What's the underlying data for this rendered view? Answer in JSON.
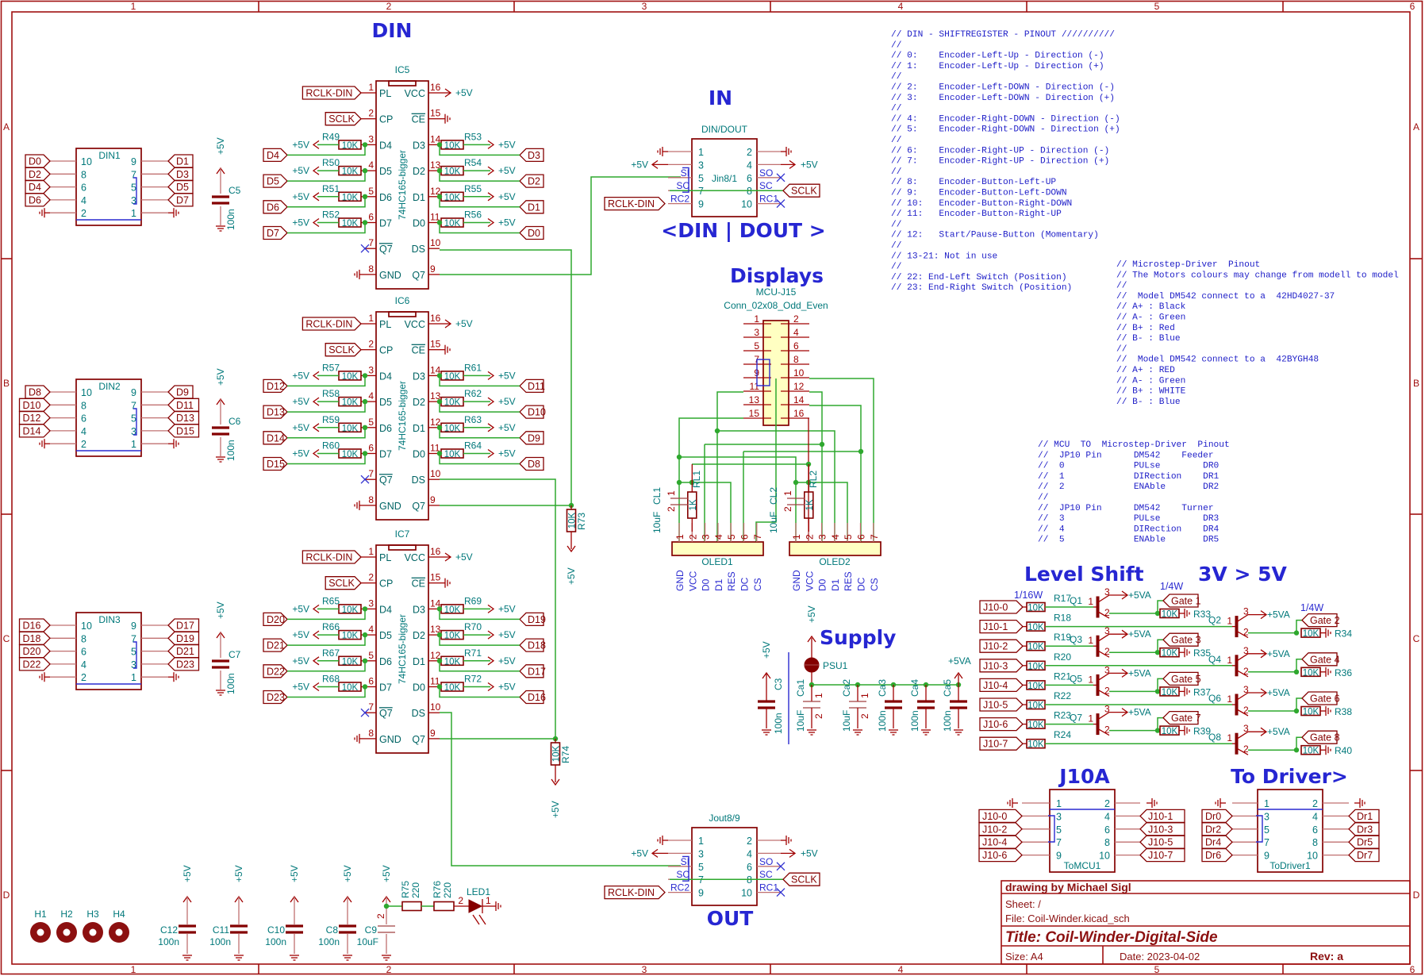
{
  "sheet": {
    "col_labels": [
      "1",
      "2",
      "3",
      "4",
      "5",
      "6"
    ],
    "row_labels": [
      "A",
      "B",
      "C",
      "D"
    ]
  },
  "power": {
    "v5": "+5V",
    "v5a": "+5VA"
  },
  "headings": {
    "din": "DIN",
    "in": "IN",
    "din_dout": "<DIN | DOUT >",
    "out": "OUT",
    "displays": "Displays",
    "level_shift": "Level Shift",
    "level_ratio": "3V > 5V",
    "supply": "Supply",
    "j10a": "J10A",
    "to_driver": "To Driver>"
  },
  "ic_pinout": {
    "left": [
      {
        "num": "1",
        "name": "PL"
      },
      {
        "num": "2",
        "name": "CP"
      },
      {
        "num": "3",
        "name": "D4"
      },
      {
        "num": "4",
        "name": "D5"
      },
      {
        "num": "5",
        "name": "D6"
      },
      {
        "num": "6",
        "name": "D7"
      },
      {
        "num": "7",
        "name": "Q7",
        "overline": true
      },
      {
        "num": "8",
        "name": "GND"
      }
    ],
    "right": [
      {
        "num": "16",
        "name": "VCC"
      },
      {
        "num": "15",
        "name": "CE",
        "overline": true
      },
      {
        "num": "14",
        "name": "D3"
      },
      {
        "num": "13",
        "name": "D2"
      },
      {
        "num": "12",
        "name": "D1"
      },
      {
        "num": "11",
        "name": "D0"
      },
      {
        "num": "10",
        "name": "DS"
      },
      {
        "num": "9",
        "name": "Q7"
      }
    ]
  },
  "shift_registers": [
    {
      "ref": "IC5",
      "value": "74HC165-bigger",
      "pl_net": "RCLK-DIN",
      "cp_net": "SCLK",
      "left": [
        {
          "ref": "R49",
          "value": "10K",
          "net": "D4"
        },
        {
          "ref": "R50",
          "value": "10K",
          "net": "D5"
        },
        {
          "ref": "R51",
          "value": "10K",
          "net": "D6"
        },
        {
          "ref": "R52",
          "value": "10K",
          "net": "D7"
        }
      ],
      "right": [
        {
          "ref": "R53",
          "value": "10K",
          "net": "D3"
        },
        {
          "ref": "R54",
          "value": "10K",
          "net": "D2"
        },
        {
          "ref": "R55",
          "value": "10K",
          "net": "D1"
        },
        {
          "ref": "R56",
          "value": "10K",
          "net": "D0"
        }
      ]
    },
    {
      "ref": "IC6",
      "value": "74HC165-bigger",
      "pl_net": "RCLK-DIN",
      "cp_net": "SCLK",
      "left": [
        {
          "ref": "R57",
          "value": "10K",
          "net": "D12"
        },
        {
          "ref": "R58",
          "value": "10K",
          "net": "D13"
        },
        {
          "ref": "R59",
          "value": "10K",
          "net": "D14"
        },
        {
          "ref": "R60",
          "value": "10K",
          "net": "D15"
        }
      ],
      "right": [
        {
          "ref": "R61",
          "value": "10K",
          "net": "D11"
        },
        {
          "ref": "R62",
          "value": "10K",
          "net": "D10"
        },
        {
          "ref": "R63",
          "value": "10K",
          "net": "D9"
        },
        {
          "ref": "R64",
          "value": "10K",
          "net": "D8"
        }
      ]
    },
    {
      "ref": "IC7",
      "value": "74HC165-bigger",
      "pl_net": "RCLK-DIN",
      "cp_net": "SCLK",
      "left": [
        {
          "ref": "R65",
          "value": "10K",
          "net": "D20"
        },
        {
          "ref": "R66",
          "value": "10K",
          "net": "D21"
        },
        {
          "ref": "R67",
          "value": "10K",
          "net": "D22"
        },
        {
          "ref": "R68",
          "value": "10K",
          "net": "D23"
        }
      ],
      "right": [
        {
          "ref": "R69",
          "value": "10K",
          "net": "D19"
        },
        {
          "ref": "R70",
          "value": "10K",
          "net": "D18"
        },
        {
          "ref": "R71",
          "value": "10K",
          "net": "D17"
        },
        {
          "ref": "R72",
          "value": "10K",
          "net": "D16"
        }
      ]
    }
  ],
  "pullups": [
    {
      "ref": "R73",
      "value": "10K"
    },
    {
      "ref": "R74",
      "value": "10K"
    }
  ],
  "din_pinout": {
    "left": [
      "10",
      "8",
      "6",
      "4",
      "2"
    ],
    "right": [
      "9",
      "7",
      "5",
      "3",
      "1"
    ]
  },
  "din_connectors": [
    {
      "ref": "DIN1",
      "left_nets": [
        "D0",
        "D2",
        "D4",
        "D6"
      ],
      "right_nets": [
        "D1",
        "D3",
        "D5",
        "D7"
      ],
      "cap": {
        "ref": "C5",
        "value": "100n"
      }
    },
    {
      "ref": "DIN2",
      "left_nets": [
        "D8",
        "D10",
        "D12",
        "D14"
      ],
      "right_nets": [
        "D9",
        "D11",
        "D13",
        "D15"
      ],
      "cap": {
        "ref": "C6",
        "value": "100n"
      }
    },
    {
      "ref": "DIN3",
      "left_nets": [
        "D16",
        "D18",
        "D20",
        "D22"
      ],
      "right_nets": [
        "D17",
        "D19",
        "D21",
        "D23"
      ],
      "cap": {
        "ref": "C7",
        "value": "100n"
      }
    }
  ],
  "io_pinout": {
    "left_pins": [
      "1",
      "3",
      "5",
      "7",
      "9"
    ],
    "left_names": [
      "",
      "",
      "SI",
      "SC",
      "RC2"
    ],
    "right_pins": [
      "2",
      "4",
      "6",
      "8",
      "10"
    ],
    "right_names": [
      "",
      "",
      "SO",
      "SC",
      "RC1"
    ],
    "left_net": "RCLK-DIN",
    "right_net": "SCLK"
  },
  "io_connectors": [
    {
      "ref": "DIN/DOUT",
      "value": "Jin8/1"
    },
    {
      "ref": "Jout8/9"
    }
  ],
  "displays": {
    "conn_ref": "MCU-J15",
    "conn_value": "Conn_02x08_Odd_Even",
    "pins_left": [
      "1",
      "3",
      "5",
      "7",
      "9",
      "11",
      "13",
      "15"
    ],
    "pins_right": [
      "2",
      "4",
      "6",
      "8",
      "10",
      "12",
      "14",
      "16"
    ],
    "oled_pins": [
      "1",
      "2",
      "3",
      "4",
      "5",
      "6",
      "7"
    ],
    "oled_pin_names": [
      "GND",
      "VCC",
      "D0",
      "D1",
      "RES",
      "DC",
      "CS"
    ],
    "cap_pins": [
      "1",
      "2"
    ],
    "oleds": [
      {
        "ref": "OLED1",
        "cap_ref": "CL1",
        "cap_value": "10uF",
        "res_ref": "RL1",
        "res_value": "1K"
      },
      {
        "ref": "OLED2",
        "cap_ref": "CL2",
        "cap_value": "10uF",
        "res_ref": "RL2",
        "res_value": "1K"
      }
    ]
  },
  "comments": {
    "din_pinout": [
      "// DIN - SHIFTREGISTER - PINOUT //////////",
      "//",
      "// 0:    Encoder-Left-Up - Direction (-)",
      "// 1:    Encoder-Left-Up - Direction (+)",
      "//",
      "// 2:    Encoder-Left-DOWN - Direction (-)",
      "// 3:    Encoder-Left-DOWN - Direction (+)",
      "//",
      "// 4:    Encoder-Right-DOWN - Direction (-)",
      "// 5:    Encoder-Right-DOWN - Direction (+)",
      "//",
      "// 6:    Encoder-Right-UP - Direction (-)",
      "// 7:    Encoder-Right-UP - Direction (+)",
      "//",
      "// 8:    Encoder-Button-Left-UP",
      "// 9:    Encoder-Button-Left-DOWN",
      "// 10:   Encoder-Button-Right-DOWN",
      "// 11:   Encoder-Button-Right-UP",
      "//",
      "// 12:   Start/Pause-Button (Momentary)",
      "//",
      "// 13-21: Not in use",
      "//",
      "// 22: End-Left Switch (Position)",
      "// 23: End-Right Switch (Position)"
    ],
    "motor_pinout": [
      "// Microstep-Driver  Pinout",
      "// The Motors colours may change from modell to model",
      "//",
      "//  Model DM542 connect to a  42HD4027-37",
      "// A+ : Black",
      "// A- : Green",
      "// B+ : Red",
      "// B- : Blue",
      "//",
      "//  Model DM542 connect to a  42BYGH48",
      "// A+ : RED",
      "// A- : Green",
      "// B+ : WHITE",
      "// B- : Blue"
    ],
    "mcu_pinout": [
      "// MCU  TO  Microstep-Driver  Pinout",
      "//  JP10 Pin      DM542    Feeder",
      "//  0             PULse        DR0",
      "//  1             DIRection    DR1",
      "//  2             ENAble       DR2",
      "//",
      "//  JP10 Pin      DM542    Turner",
      "//  3             PULse        DR3",
      "//  4             DIRection    DR4",
      "//  5             ENAble       DR5"
    ]
  },
  "level_shift": {
    "rating_in": "1/16W",
    "rating_pd": "1/4W",
    "transistor_pins": [
      "1",
      "2",
      "3"
    ],
    "rows": [
      {
        "net": "J10-0",
        "r_in": "R17",
        "r_in_value": "10K",
        "q": "Q1",
        "gate": "Gate 1",
        "r_pd": "R33",
        "r_pd_value": "10K"
      },
      {
        "net": "J10-1",
        "r_in": "R18",
        "r_in_value": "10K",
        "q": "Q2",
        "gate": "Gate 2",
        "r_pd": "R34",
        "r_pd_value": "10K"
      },
      {
        "net": "J10-2",
        "r_in": "R19",
        "r_in_value": "10K",
        "q": "Q3",
        "gate": "Gate 3",
        "r_pd": "R35",
        "r_pd_value": "10K"
      },
      {
        "net": "J10-3",
        "r_in": "R20",
        "r_in_value": "10K",
        "q": "Q4",
        "gate": "Gate 4",
        "r_pd": "R36",
        "r_pd_value": "10K"
      },
      {
        "net": "J10-4",
        "r_in": "R21",
        "r_in_value": "10K",
        "q": "Q5",
        "gate": "Gate 5",
        "r_pd": "R37",
        "r_pd_value": "10K"
      },
      {
        "net": "J10-5",
        "r_in": "R22",
        "r_in_value": "10K",
        "q": "Q6",
        "gate": "Gate 6",
        "r_pd": "R38",
        "r_pd_value": "10K"
      },
      {
        "net": "J10-6",
        "r_in": "R23",
        "r_in_value": "10K",
        "q": "Q7",
        "gate": "Gate 7",
        "r_pd": "R39",
        "r_pd_value": "10K"
      },
      {
        "net": "J10-7",
        "r_in": "R24",
        "r_in_value": "10K",
        "q": "Q8",
        "gate": "Gate 8",
        "r_pd": "R40",
        "r_pd_value": "10K"
      }
    ]
  },
  "supply": {
    "psu": "PSU1",
    "c3": {
      "ref": "C3",
      "value": "100n"
    },
    "caps": [
      {
        "ref": "Ca1",
        "value": "10uF",
        "polar": true
      },
      {
        "ref": "Ca2",
        "value": "10uF",
        "polar": true
      },
      {
        "ref": "Ca3",
        "value": "100n"
      },
      {
        "ref": "Ca4",
        "value": "100n"
      },
      {
        "ref": "Ca5",
        "value": "100n"
      }
    ],
    "cap_pins": [
      "1",
      "2"
    ]
  },
  "box_pinout": {
    "left": [
      "1",
      "3",
      "5",
      "7",
      "9"
    ],
    "right": [
      "2",
      "4",
      "6",
      "8",
      "10"
    ]
  },
  "j10a": {
    "ref": "ToMCU1",
    "left": [
      "J10-0",
      "J10-2",
      "J10-4",
      "J10-6"
    ],
    "right": [
      "J10-1",
      "J10-3",
      "J10-5",
      "J10-7"
    ]
  },
  "to_driver": {
    "ref": "ToDriver1",
    "left": [
      "Dr0",
      "Dr2",
      "Dr4",
      "Dr6"
    ],
    "right": [
      "Dr1",
      "Dr3",
      "Dr5",
      "Dr7"
    ]
  },
  "holes": [
    "H1",
    "H2",
    "H3",
    "H4"
  ],
  "decoupling": [
    {
      "ref": "C12",
      "value": "100n"
    },
    {
      "ref": "C11",
      "value": "100n"
    },
    {
      "ref": "C10",
      "value": "100n"
    },
    {
      "ref": "C8",
      "value": "100n"
    },
    {
      "ref": "C9",
      "value": "10uF"
    }
  ],
  "led_chain": {
    "r1": {
      "ref": "R75",
      "value": "220"
    },
    "r2": {
      "ref": "R76",
      "value": "220"
    },
    "led": "LED1",
    "led_pins": [
      "2",
      "1"
    ],
    "c9_pin": "2"
  },
  "title_block": {
    "author": "drawing by Michael Sigl",
    "sheet": "Sheet: /",
    "file": "File: Coil-Winder.kicad_sch",
    "title": "Title: Coil-Winder-Digital-Side",
    "size": "Size: A4",
    "date": "Date: 2023-04-02",
    "rev": "Rev: a"
  },
  "colors": {
    "wire": "#2ea82e",
    "component": "#840000",
    "heading": "#2626d2",
    "text": "#00787a",
    "connector_fill": "#ffffc2"
  }
}
